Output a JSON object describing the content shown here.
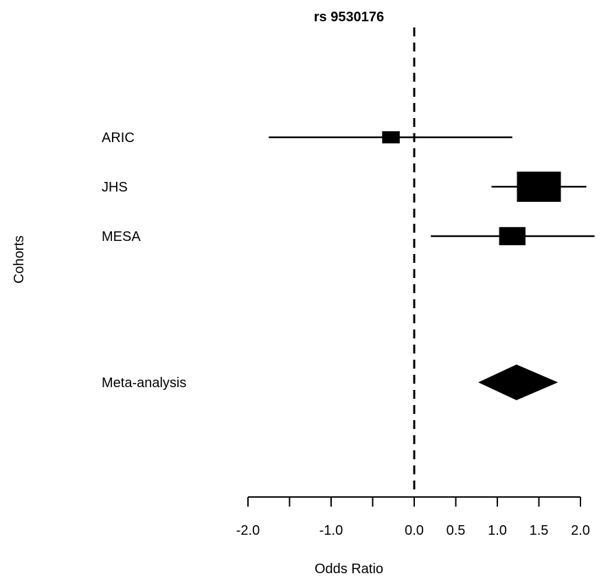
{
  "chart_data": {
    "type": "forest",
    "title": "rs 9530176",
    "xlabel": "Odds Ratio",
    "ylabel": "Cohorts",
    "xlim": [
      -2.0,
      2.2
    ],
    "xticks": [
      -2.0,
      -1.5,
      -1.0,
      -0.5,
      0.0,
      0.5,
      1.0,
      1.5,
      2.0
    ],
    "xtick_labels": [
      "-2.0",
      "",
      "-1.0",
      "",
      "0.0",
      "0.5",
      "1.0",
      "1.5",
      "2.0"
    ],
    "reference_line": 0.0,
    "colors": {
      "marks": "#000000",
      "background": "#ffffff"
    },
    "studies": [
      {
        "label": "ARIC",
        "estimate": -0.28,
        "ci_low": -1.75,
        "ci_high": 1.18,
        "weight": 0.4
      },
      {
        "label": "JHS",
        "estimate": 1.5,
        "ci_low": 0.93,
        "ci_high": 2.07,
        "weight": 1.0
      },
      {
        "label": "MESA",
        "estimate": 1.18,
        "ci_low": 0.2,
        "ci_high": 2.17,
        "weight": 0.6
      }
    ],
    "summary": {
      "label": "Meta-analysis",
      "estimate": 1.23,
      "ci_low": 0.77,
      "ci_high": 1.73
    }
  }
}
